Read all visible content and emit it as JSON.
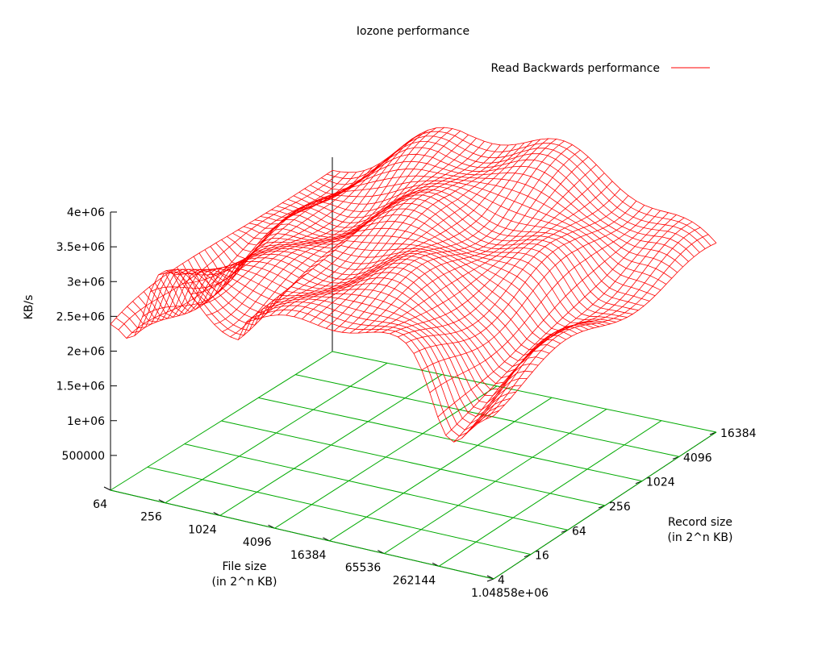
{
  "chart_data": {
    "type": "surface",
    "title": "Iozone performance",
    "legend": {
      "label": "Read Backwards performance",
      "position": "top-right",
      "color": "#ff0000"
    },
    "xlabel": [
      "File size",
      "(in 2^n KB)"
    ],
    "ylabel": [
      "Record size",
      "(in 2^n KB)"
    ],
    "zlabel": "KB/s",
    "x_ticks": [
      "64",
      "256",
      "1024",
      "4096",
      "16384",
      "65536",
      "262144",
      "1.04858e+06"
    ],
    "y_ticks": [
      "4",
      "16",
      "64",
      "256",
      "1024",
      "4096",
      "16384"
    ],
    "z_ticks": [
      "500000",
      "1e+06",
      "1.5e+06",
      "2e+06",
      "2.5e+06",
      "3e+06",
      "3.5e+06",
      "4e+06"
    ],
    "z_range": [
      0,
      4000000
    ],
    "grid": true,
    "series_color": "#ff0000",
    "grid_color": "#00aa00",
    "surface_summary": {
      "description": "Wireframe surface of read-backwards throughput vs file size and record size",
      "approx_peak": 4000000,
      "approx_min": 1300000
    }
  }
}
